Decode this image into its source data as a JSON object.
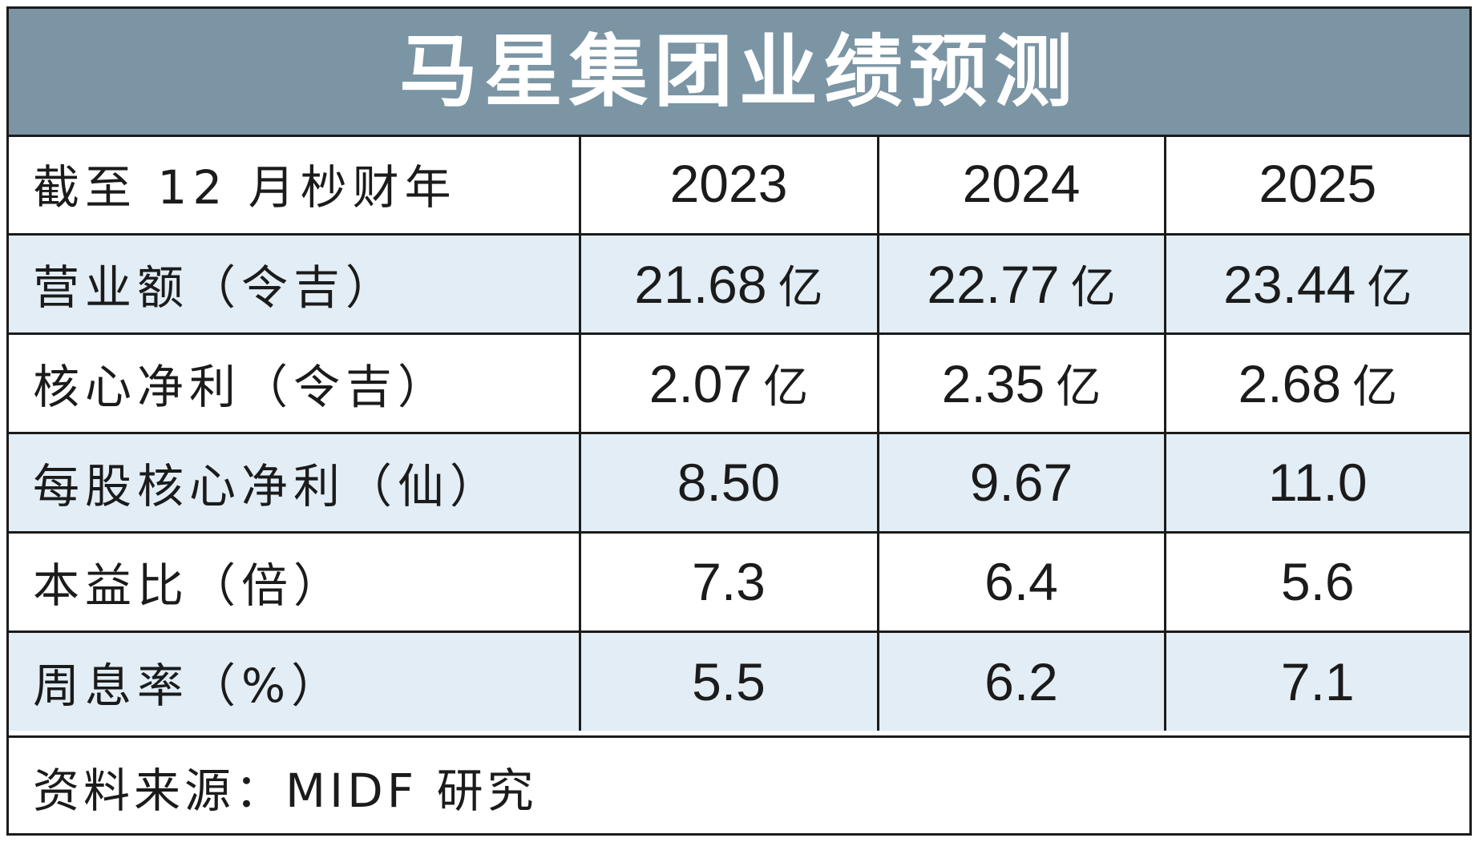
{
  "colors": {
    "title_background": "#7b95a4",
    "title_text": "#ffffff",
    "shaded_row": "#e2edf5",
    "border": "#1b1b1b"
  },
  "chart_data": {
    "type": "table",
    "title": "马星集团业绩预测",
    "header": {
      "label": "截至 12 月杪财年",
      "years": [
        "2023",
        "2024",
        "2025"
      ]
    },
    "rows": [
      {
        "label": "营业额（令吉）",
        "values": [
          {
            "num": "21.68",
            "unit": "亿"
          },
          {
            "num": "22.77",
            "unit": "亿"
          },
          {
            "num": "23.44",
            "unit": "亿"
          }
        ],
        "shaded": true
      },
      {
        "label": "核心净利（令吉）",
        "values": [
          {
            "num": "2.07",
            "unit": "亿"
          },
          {
            "num": "2.35",
            "unit": "亿"
          },
          {
            "num": "2.68",
            "unit": "亿"
          }
        ],
        "shaded": false
      },
      {
        "label": "每股核心净利（仙）",
        "values": [
          {
            "num": "8.50",
            "unit": ""
          },
          {
            "num": "9.67",
            "unit": ""
          },
          {
            "num": "11.0",
            "unit": ""
          }
        ],
        "shaded": true
      },
      {
        "label": "本益比（倍）",
        "values": [
          {
            "num": "7.3",
            "unit": ""
          },
          {
            "num": "6.4",
            "unit": ""
          },
          {
            "num": "5.6",
            "unit": ""
          }
        ],
        "shaded": false
      },
      {
        "label": "周息率（%）",
        "values": [
          {
            "num": "5.5",
            "unit": ""
          },
          {
            "num": "6.2",
            "unit": ""
          },
          {
            "num": "7.1",
            "unit": ""
          }
        ],
        "shaded": true
      }
    ],
    "source": "资料来源：MIDF 研究"
  }
}
